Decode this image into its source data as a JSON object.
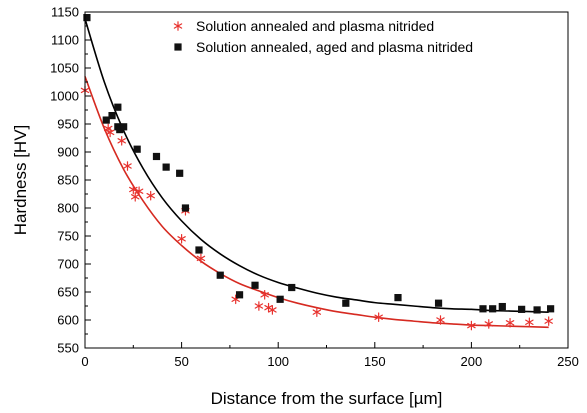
{
  "chart_data": {
    "type": "scatter",
    "xlabel": "Distance from the surface [µm]",
    "ylabel": "Hardness [HV]",
    "xlim": [
      0,
      250
    ],
    "ylim": [
      550,
      1150
    ],
    "xticks": [
      "0",
      "50",
      "100",
      "150",
      "200",
      "250"
    ],
    "yticks": [
      "550",
      "600",
      "650",
      "700",
      "750",
      "800",
      "850",
      "900",
      "950",
      "1000",
      "1050",
      "1100",
      "1150"
    ],
    "grid": false,
    "legend_position": "top-right",
    "series": [
      {
        "name": "Solution annealed and plasma nitrided",
        "marker": "asterisk",
        "color": "#e8322e",
        "x": [
          0,
          12,
          13,
          19,
          22,
          25,
          26,
          28,
          34,
          50,
          52,
          60,
          78,
          90,
          93,
          95,
          97,
          120,
          152,
          184,
          200,
          209,
          220,
          230,
          240
        ],
        "y": [
          1010,
          942,
          935,
          920,
          875,
          833,
          820,
          830,
          822,
          745,
          795,
          710,
          637,
          625,
          645,
          622,
          618,
          614,
          605,
          600,
          590,
          593,
          595,
          596,
          598
        ],
        "fit_x": [
          0,
          10,
          20,
          30,
          40,
          50,
          60,
          70,
          80,
          90,
          100,
          110,
          120,
          130,
          140,
          150,
          160,
          170,
          180,
          190,
          200,
          210,
          220,
          230,
          240
        ],
        "fit_y": [
          1035,
          942,
          869,
          813,
          767,
          733,
          705,
          683,
          665,
          652,
          640,
          630,
          622,
          615,
          610,
          605,
          601,
          598,
          595,
          593,
          591,
          590,
          589,
          588,
          587
        ]
      },
      {
        "name": "Solution annealed, aged and plasma nitrided",
        "marker": "square",
        "color": "#111111",
        "x": [
          1,
          11,
          14,
          17,
          17,
          18,
          20,
          27,
          37,
          42,
          49,
          52,
          59,
          70,
          80,
          88,
          101,
          107,
          135,
          162,
          183,
          206,
          211,
          216,
          226,
          234,
          241
        ],
        "y": [
          1140,
          957,
          965,
          980,
          945,
          940,
          945,
          905,
          892,
          873,
          862,
          800,
          725,
          680,
          645,
          662,
          637,
          658,
          630,
          640,
          630,
          620,
          620,
          624,
          619,
          618,
          620
        ],
        "fit_x": [
          0,
          10,
          20,
          30,
          40,
          50,
          60,
          70,
          80,
          90,
          100,
          110,
          120,
          130,
          140,
          150,
          160,
          170,
          180,
          190,
          200,
          210,
          220,
          230,
          240
        ],
        "fit_y": [
          1138,
          1025,
          938,
          871,
          818,
          777,
          744,
          718,
          697,
          680,
          667,
          657,
          648,
          641,
          636,
          631,
          628,
          625,
          622,
          620,
          619,
          617,
          616,
          615,
          614
        ]
      }
    ]
  }
}
